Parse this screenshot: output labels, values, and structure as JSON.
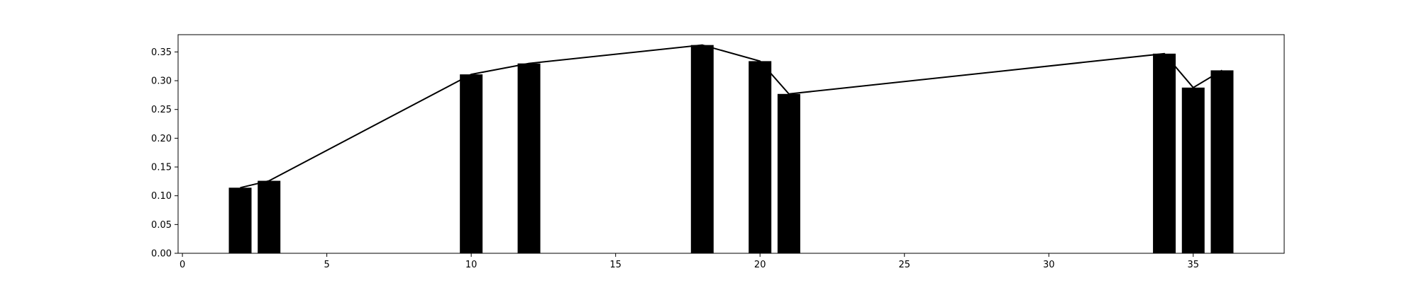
{
  "chart_data": {
    "type": "bar",
    "title": "",
    "xlabel": "",
    "ylabel": "",
    "x": [
      2,
      3,
      10,
      12,
      18,
      20,
      21,
      34,
      35,
      36
    ],
    "values": [
      0.114,
      0.126,
      0.311,
      0.33,
      0.362,
      0.334,
      0.277,
      0.347,
      0.288,
      0.318
    ],
    "overlay_line": true,
    "xlim": [
      -0.15,
      38.15
    ],
    "ylim": [
      0,
      0.38
    ],
    "xticks": [
      0,
      5,
      10,
      15,
      20,
      25,
      30,
      35
    ],
    "yticks": [
      0.0,
      0.05,
      0.1,
      0.15,
      0.2,
      0.25,
      0.3,
      0.35
    ],
    "xtick_labels": [
      "0",
      "5",
      "10",
      "15",
      "20",
      "25",
      "30",
      "35"
    ],
    "ytick_labels": [
      "0.00",
      "0.05",
      "0.10",
      "0.15",
      "0.20",
      "0.25",
      "0.30",
      "0.35"
    ],
    "bar_color": "#000000",
    "line_color": "#000000",
    "grid": false,
    "legend": "none"
  }
}
